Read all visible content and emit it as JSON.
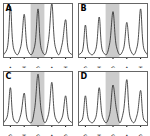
{
  "chart_data": [
    {
      "type": "line",
      "title": "A",
      "x": [
        0,
        1,
        2,
        3,
        4,
        5,
        6,
        7,
        8,
        9,
        10,
        11,
        12,
        13,
        14,
        15,
        16,
        17,
        18,
        19,
        20
      ],
      "values": [
        5,
        15,
        95,
        15,
        5,
        20,
        80,
        15,
        5,
        20,
        90,
        15,
        5,
        30,
        100,
        20,
        5,
        25,
        70,
        10,
        5
      ],
      "xlim": [
        0,
        20
      ],
      "ylim": [
        0,
        100
      ],
      "yticks": [],
      "tick_labels": "x",
      "xticks": [
        {
          "value": 2,
          "label": "A"
        },
        {
          "value": 6,
          "label": "T"
        },
        {
          "value": 10,
          "label": "G"
        },
        {
          "value": 14,
          "label": "A"
        },
        {
          "value": 18,
          "label": "T"
        }
      ],
      "shaded": [
        8,
        12
      ],
      "color": "#222222"
    },
    {
      "type": "line",
      "title": "B",
      "x": [
        0,
        1,
        2,
        3,
        4,
        5,
        6,
        7,
        8,
        9,
        10,
        11,
        12,
        13,
        14,
        15,
        16,
        17,
        18,
        19,
        20
      ],
      "values": [
        5,
        10,
        60,
        10,
        5,
        15,
        75,
        12,
        5,
        25,
        85,
        20,
        5,
        15,
        65,
        15,
        5,
        20,
        90,
        15,
        5
      ],
      "xlim": [
        0,
        20
      ],
      "ylim": [
        0,
        100
      ],
      "yticks": [],
      "tick_labels": "x",
      "xticks": [
        {
          "value": 2,
          "label": "C"
        },
        {
          "value": 6,
          "label": "T"
        },
        {
          "value": 10,
          "label": "G"
        },
        {
          "value": 14,
          "label": "A"
        },
        {
          "value": 18,
          "label": "T"
        }
      ],
      "shaded": [
        8,
        12
      ],
      "color": "#222222"
    },
    {
      "type": "line",
      "title": "C",
      "x": [
        0,
        1,
        2,
        3,
        4,
        5,
        6,
        7,
        8,
        9,
        10,
        11,
        12,
        13,
        14,
        15,
        16,
        17,
        18,
        19,
        20
      ],
      "values": [
        5,
        15,
        70,
        10,
        5,
        20,
        60,
        10,
        5,
        30,
        95,
        25,
        5,
        20,
        80,
        15,
        5,
        15,
        55,
        10,
        5
      ],
      "xlim": [
        0,
        20
      ],
      "ylim": [
        0,
        100
      ],
      "yticks": [],
      "tick_labels": "x",
      "xticks": [
        {
          "value": 2,
          "label": "G"
        },
        {
          "value": 6,
          "label": "T"
        },
        {
          "value": 10,
          "label": "G"
        },
        {
          "value": 14,
          "label": "A"
        },
        {
          "value": 18,
          "label": "C"
        }
      ],
      "shaded": [
        8,
        12
      ],
      "color": "#222222"
    },
    {
      "type": "line",
      "title": "D",
      "x": [
        0,
        1,
        2,
        3,
        4,
        5,
        6,
        7,
        8,
        9,
        10,
        11,
        12,
        13,
        14,
        15,
        16,
        17,
        18,
        19,
        20
      ],
      "values": [
        5,
        10,
        55,
        10,
        5,
        15,
        70,
        15,
        5,
        20,
        75,
        30,
        5,
        25,
        85,
        15,
        5,
        20,
        65,
        10,
        5
      ],
      "xlim": [
        0,
        20
      ],
      "ylim": [
        0,
        100
      ],
      "yticks": [],
      "tick_labels": "x",
      "xticks": [
        {
          "value": 2,
          "label": "G"
        },
        {
          "value": 6,
          "label": "T"
        },
        {
          "value": 10,
          "label": "G"
        },
        {
          "value": 14,
          "label": "A"
        },
        {
          "value": 18,
          "label": "G"
        }
      ],
      "shaded": [
        8,
        12
      ],
      "color": "#222222"
    }
  ]
}
